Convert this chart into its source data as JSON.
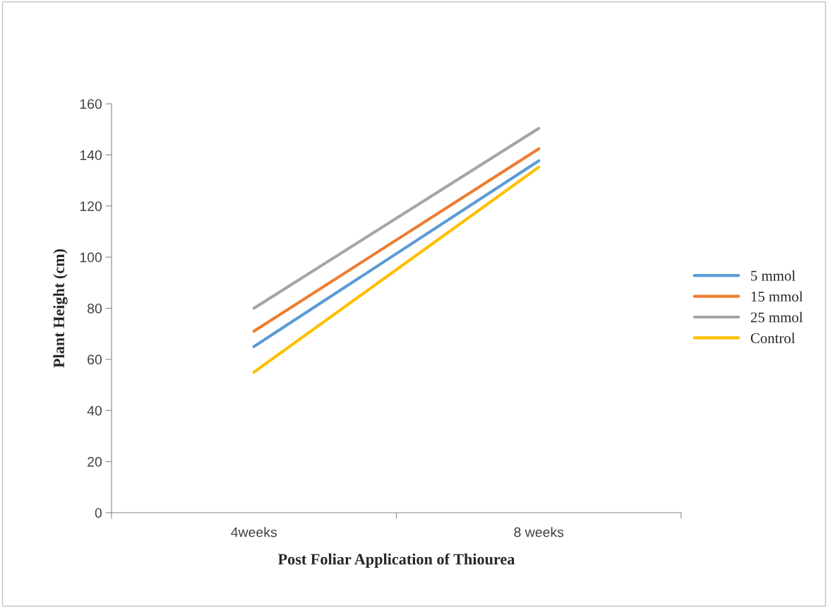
{
  "chart_data": {
    "type": "line",
    "xlabel": "Post Foliar Application of Thiourea",
    "ylabel": "Plant Height (cm)",
    "categories": [
      "4weeks",
      "8 weeks"
    ],
    "series": [
      {
        "name": "5 mmol",
        "color": "#5b9bd5",
        "values": [
          65,
          137.7
        ]
      },
      {
        "name": "15 mmol",
        "color": "#ed7d31",
        "values": [
          71,
          142.4
        ]
      },
      {
        "name": "25 mmol",
        "color": "#a5a5a5",
        "values": [
          80,
          150.4
        ]
      },
      {
        "name": "Control",
        "color": "#ffc000",
        "values": [
          55,
          135.2
        ]
      }
    ],
    "ylim": [
      0,
      160
    ],
    "yticks": [
      0,
      20,
      40,
      60,
      80,
      100,
      120,
      140,
      160
    ],
    "grid": false,
    "legend": "right",
    "marker": "none",
    "line_style": "solid"
  }
}
